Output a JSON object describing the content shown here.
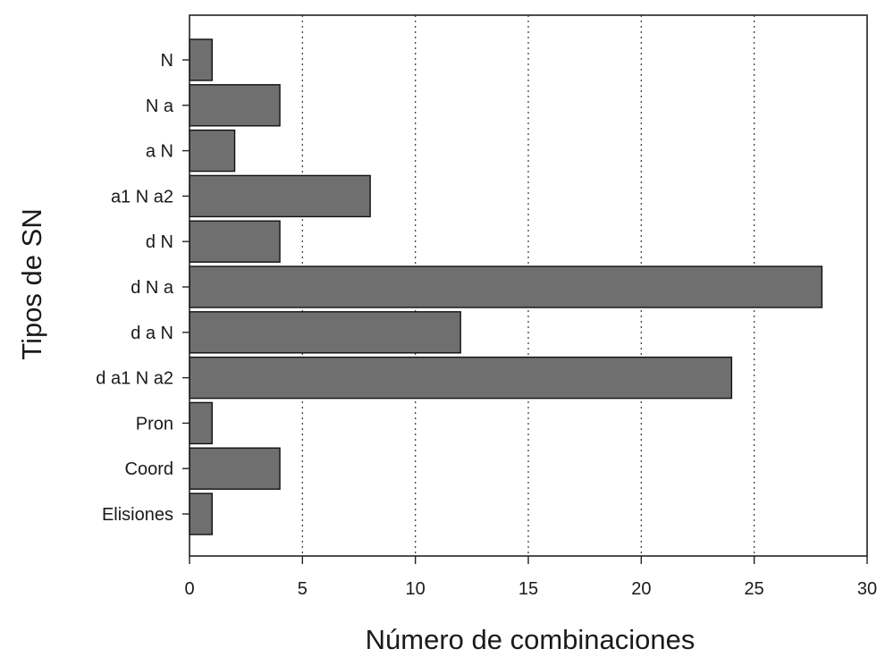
{
  "chart_data": {
    "type": "bar",
    "orientation": "horizontal",
    "title": "",
    "xlabel": "Número de combinaciones",
    "ylabel": "Tipos de SN",
    "categories": [
      "N",
      "N a",
      "a N",
      "a1 N a2",
      "d N",
      "d N a",
      "d a N",
      "d a1 N a2",
      "Pron",
      "Coord",
      "Elisiones"
    ],
    "values": [
      1,
      4,
      2,
      8,
      4,
      28,
      12,
      24,
      1,
      4,
      1
    ],
    "xlim": [
      0,
      30
    ],
    "xticks": [
      0,
      5,
      10,
      15,
      20,
      25,
      30
    ],
    "grid": "vertical dotted at 5, 10, 15, 20, 25",
    "legend": "none",
    "bar_color": "#6f6f6f"
  }
}
